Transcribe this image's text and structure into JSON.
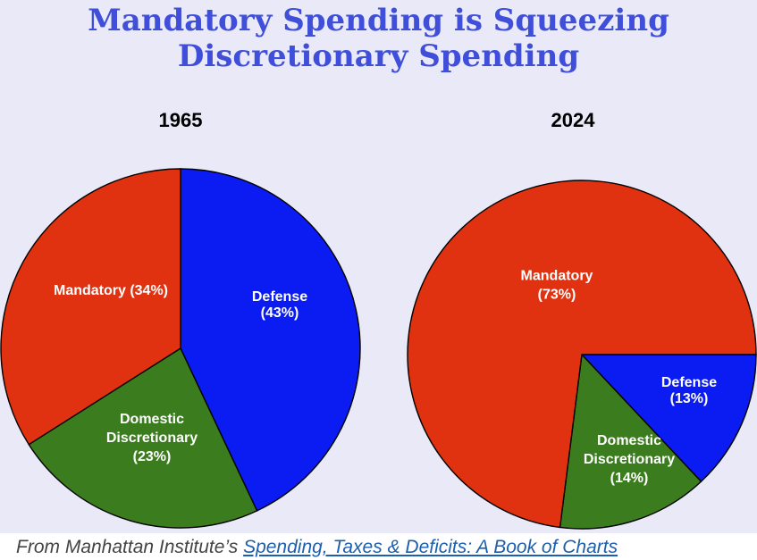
{
  "header": {
    "title_line1": "Mandatory Spending is Squeezing",
    "title_line2": "Discretionary Spending"
  },
  "colors": {
    "mandatory": "#e03110",
    "defense": "#0a1cf2",
    "domestic_discretionary": "#3b7d1e",
    "background": "#e9e9f8",
    "title": "#3f4fd9"
  },
  "chart_data": [
    {
      "type": "pie",
      "title": "1965",
      "slices": [
        {
          "name": "Defense",
          "value": 43,
          "color": "#0a1cf2",
          "label": [
            "Defense",
            "(43%)"
          ]
        },
        {
          "name": "Domestic Discretionary",
          "value": 23,
          "color": "#3b7d1e",
          "label": [
            "Domestic",
            "Discretionary",
            "(23%)"
          ]
        },
        {
          "name": "Mandatory",
          "value": 34,
          "color": "#e03110",
          "label": [
            "Mandatory (34%)"
          ]
        }
      ]
    },
    {
      "type": "pie",
      "title": "2024",
      "slices": [
        {
          "name": "Defense",
          "value": 13,
          "color": "#0a1cf2",
          "label": [
            "Defense",
            "(13%)"
          ]
        },
        {
          "name": "Domestic Discretionary",
          "value": 14,
          "color": "#3b7d1e",
          "label": [
            "Domestic",
            "Discretionary",
            "(14%)"
          ]
        },
        {
          "name": "Mandatory",
          "value": 73,
          "color": "#e03110",
          "label": [
            "Mandatory",
            "(73%)"
          ]
        }
      ]
    }
  ],
  "footer": {
    "prefix": "From Manhattan Institute’s ",
    "link_text": "Spending, Taxes & Deficits: A Book of Charts"
  }
}
